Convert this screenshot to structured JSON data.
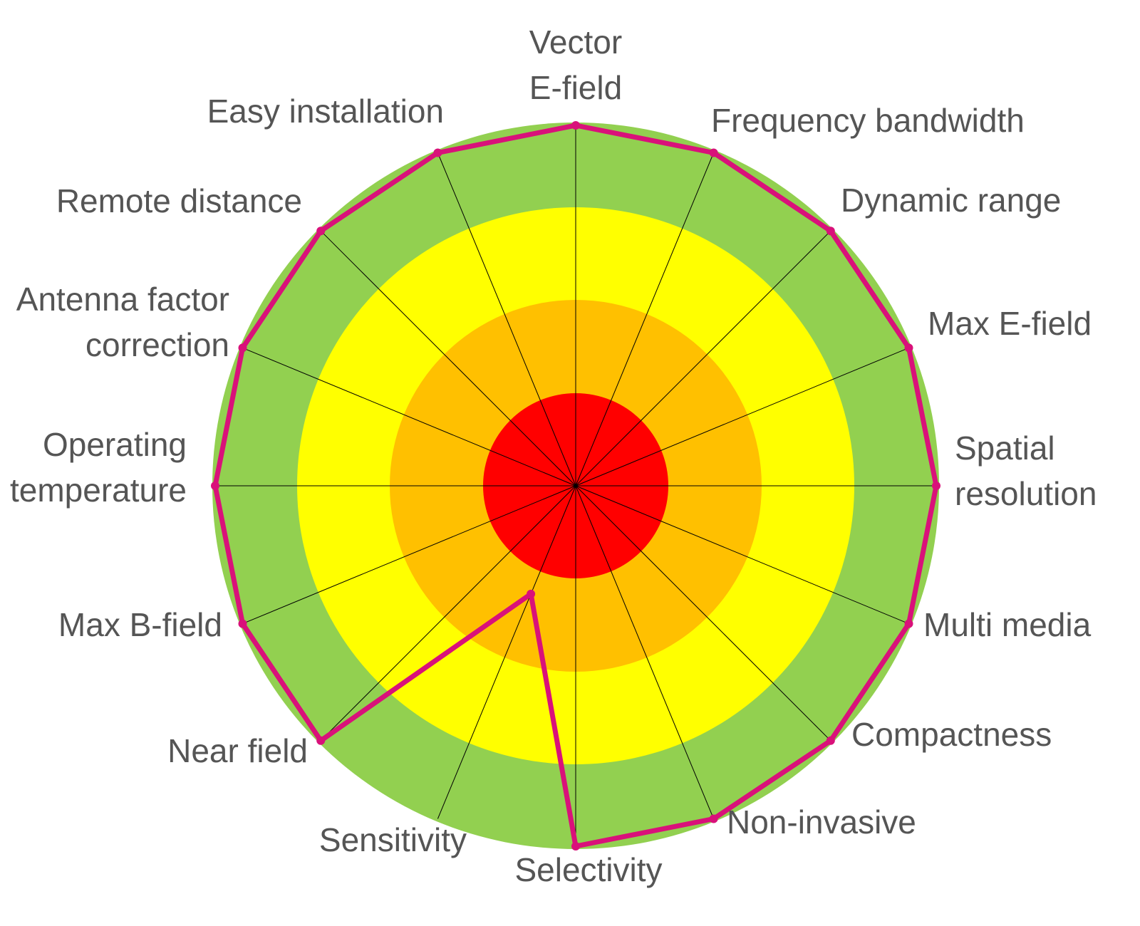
{
  "chart_data": {
    "type": "radar",
    "max_level": 4,
    "axes": [
      "Vector E-field",
      "Frequency bandwidth",
      "Dynamic range",
      "Max E-field",
      "Spatial resolution",
      "Multi media",
      "Compactness",
      "Non-invasive",
      "Selectivity",
      "Sensitivity",
      "Near field",
      "Max B-field",
      "Operating temperature",
      "Antenna factor correction",
      "Remote distance",
      "Easy installation"
    ],
    "axis_label_lines": [
      [
        "Vector",
        "E-field"
      ],
      [
        "Frequency bandwidth"
      ],
      [
        "Dynamic range"
      ],
      [
        "Max E-field"
      ],
      [
        "Spatial",
        "resolution"
      ],
      [
        "Multi media"
      ],
      [
        "Compactness"
      ],
      [
        "Non-invasive"
      ],
      [
        "Selectivity"
      ],
      [
        "Sensitivity"
      ],
      [
        "Near field"
      ],
      [
        "Max B-field"
      ],
      [
        "Operating",
        "temperature"
      ],
      [
        "Antenna factor",
        "correction"
      ],
      [
        "Remote distance"
      ],
      [
        "Easy installation"
      ]
    ],
    "series": [
      {
        "values": [
          4,
          4,
          4,
          4,
          4,
          4,
          4,
          4,
          4,
          1.3,
          4,
          4,
          4,
          4,
          4,
          4
        ],
        "color": "#d9117a"
      }
    ],
    "rings": [
      {
        "level": 4,
        "color": "#92d050"
      },
      {
        "level": 3,
        "color": "#ffff00"
      },
      {
        "level": 2,
        "color": "#ffc000"
      },
      {
        "level": 1,
        "color": "#ff0000"
      }
    ]
  }
}
